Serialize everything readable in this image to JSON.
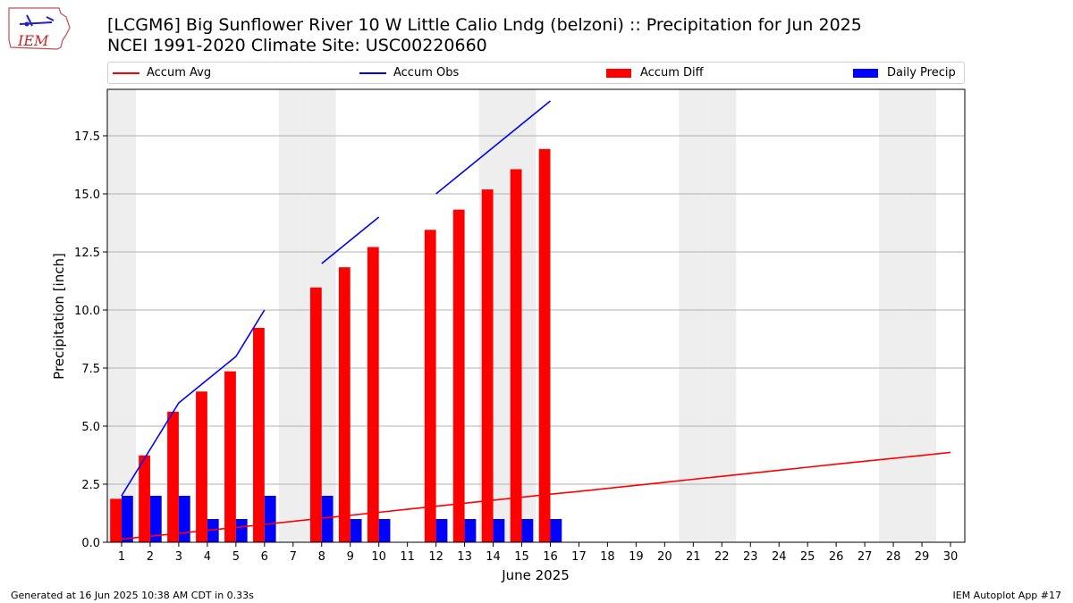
{
  "header": {
    "logo_text": "IEM",
    "title_line1": "[LCGM6] Big Sunflower River 10 W Little Calio Lndg (belzoni) :: Precipitation for Jun 2025",
    "title_line2": "NCEI 1991-2020 Climate Site: USC00220660"
  },
  "footer": {
    "left": "Generated at 16 Jun 2025 10:38 AM CDT in 0.33s",
    "right": "IEM Autoplot App #17"
  },
  "colors": {
    "avg": "#ff0000",
    "obs": "#0000ff",
    "diff": "#ff0000",
    "daily": "#0000ff",
    "weekend_shade": "#eeeeee",
    "grid": "#b0b0b0"
  },
  "chart_data": {
    "type": "bar",
    "title": "[LCGM6] Big Sunflower River 10 W Little Calio Lndg (belzoni) :: Precipitation for Jun 2025",
    "subtitle": "NCEI 1991-2020 Climate Site: USC00220660",
    "xlabel": "June 2025",
    "ylabel": "Precipitation [inch]",
    "xlim": [
      0.5,
      30.5
    ],
    "ylim": [
      0,
      19.5
    ],
    "yticks": [
      0.0,
      2.5,
      5.0,
      7.5,
      10.0,
      12.5,
      15.0,
      17.5
    ],
    "ytick_labels": [
      "0.0",
      "2.5",
      "5.0",
      "7.5",
      "10.0",
      "12.5",
      "15.0",
      "17.5"
    ],
    "grid": "y",
    "legend_position": "top",
    "days": [
      1,
      2,
      3,
      4,
      5,
      6,
      7,
      8,
      9,
      10,
      11,
      12,
      13,
      14,
      15,
      16,
      17,
      18,
      19,
      20,
      21,
      22,
      23,
      24,
      25,
      26,
      27,
      28,
      29,
      30
    ],
    "shaded_days": [
      1,
      7,
      8,
      14,
      15,
      21,
      22,
      28,
      29
    ],
    "legend": [
      "Accum Avg",
      "Accum Obs",
      "Accum Diff",
      "Daily Precip"
    ],
    "series": [
      {
        "name": "Accum Avg",
        "kind": "line",
        "x": [
          1,
          2,
          3,
          4,
          5,
          6,
          7,
          8,
          9,
          10,
          11,
          12,
          13,
          14,
          15,
          16,
          17,
          18,
          19,
          20,
          21,
          22,
          23,
          24,
          25,
          26,
          27,
          28,
          29,
          30
        ],
        "values": [
          0.13,
          0.26,
          0.38,
          0.51,
          0.64,
          0.77,
          0.9,
          1.03,
          1.16,
          1.29,
          1.42,
          1.55,
          1.68,
          1.81,
          1.94,
          2.07,
          2.19,
          2.32,
          2.45,
          2.58,
          2.71,
          2.84,
          2.97,
          3.1,
          3.23,
          3.36,
          3.49,
          3.61,
          3.74,
          3.87
        ]
      },
      {
        "name": "Accum Obs",
        "kind": "line",
        "x": [
          1,
          2,
          3,
          4,
          5,
          6,
          7,
          8,
          9,
          10,
          11,
          12,
          13,
          14,
          15,
          16
        ],
        "values": [
          2,
          4,
          6,
          7,
          8,
          10,
          null,
          12,
          13,
          14,
          null,
          15,
          16,
          17,
          18,
          19
        ]
      },
      {
        "name": "Accum Diff",
        "kind": "bar",
        "x": [
          1,
          2,
          3,
          4,
          5,
          6,
          7,
          8,
          9,
          10,
          11,
          12,
          13,
          14,
          15,
          16
        ],
        "values": [
          1.87,
          3.74,
          5.62,
          6.49,
          7.36,
          9.23,
          null,
          10.97,
          11.84,
          12.71,
          null,
          13.45,
          14.32,
          15.19,
          16.06,
          16.93
        ]
      },
      {
        "name": "Daily Precip",
        "kind": "bar",
        "x": [
          1,
          2,
          3,
          4,
          5,
          6,
          7,
          8,
          9,
          10,
          11,
          12,
          13,
          14,
          15,
          16
        ],
        "values": [
          2,
          2,
          2,
          1,
          1,
          2,
          null,
          2,
          1,
          1,
          null,
          1,
          1,
          1,
          1,
          1
        ]
      }
    ]
  }
}
